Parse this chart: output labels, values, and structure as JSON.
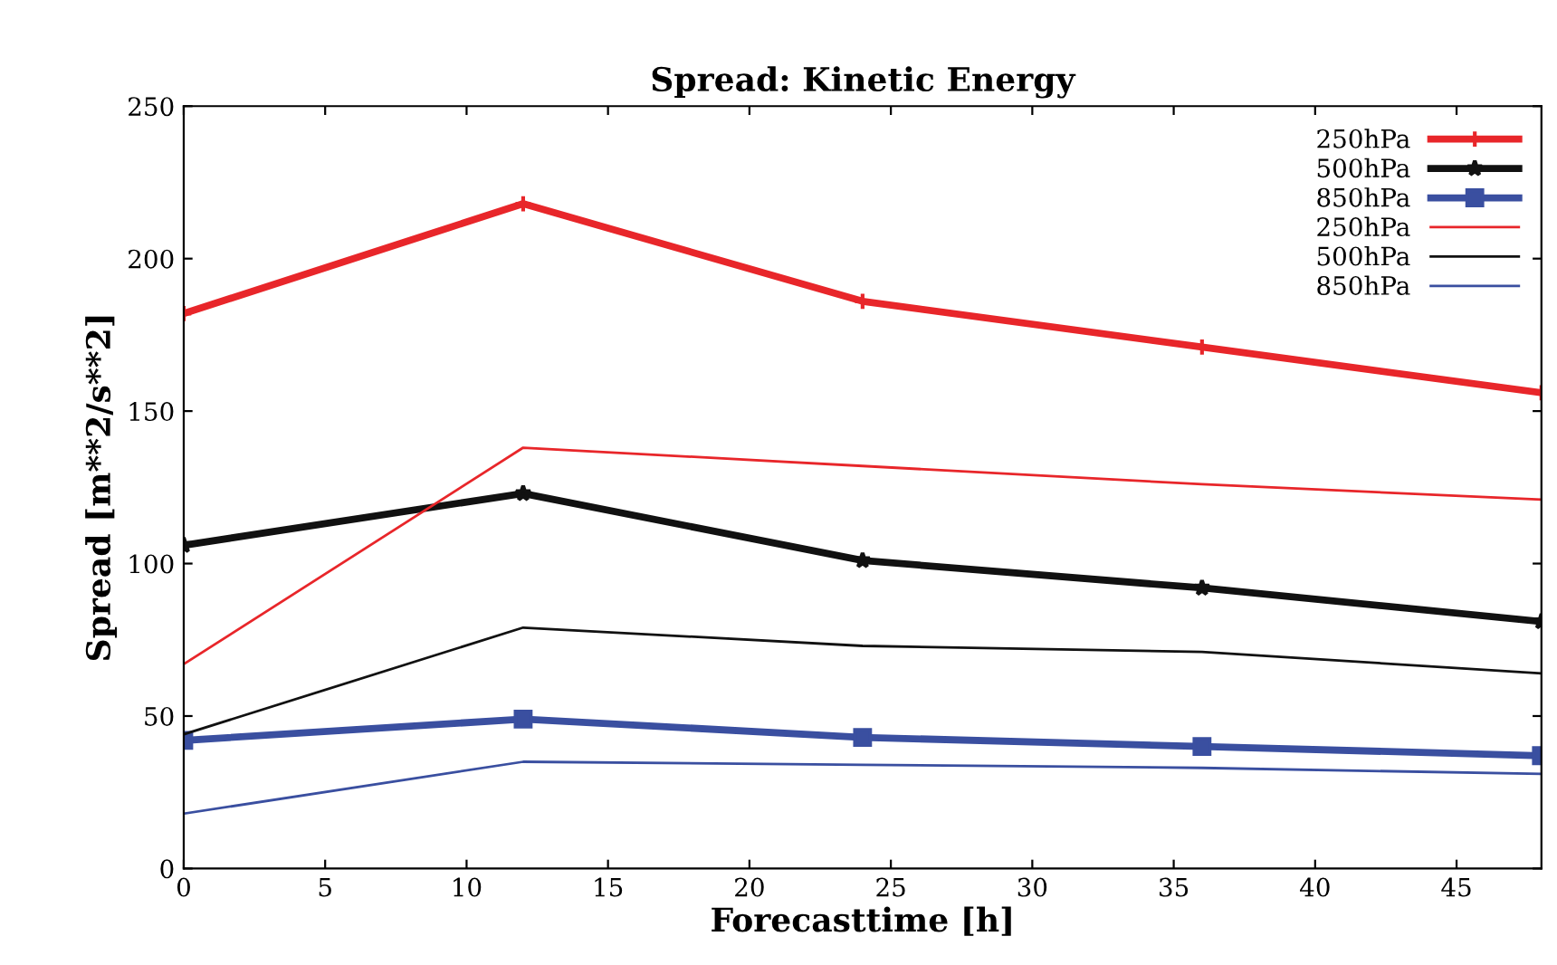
{
  "chart_data": {
    "type": "line",
    "title": "Spread: Kinetic Energy",
    "xlabel": "Forecasttime [h]",
    "ylabel": "Spread [m**2/s**2]",
    "x": [
      0,
      12,
      24,
      36,
      48
    ],
    "series": [
      {
        "name": "250hPa",
        "color": "#e8262a",
        "marker": "cross",
        "values": [
          182,
          218,
          186,
          171,
          156
        ]
      },
      {
        "name": "500hPa",
        "color": "#111111",
        "marker": "star",
        "values": [
          106,
          123,
          101,
          92,
          81
        ]
      },
      {
        "name": "850hPa",
        "color": "#3a4fa0",
        "marker": "square",
        "values": [
          42,
          49,
          43,
          40,
          37
        ]
      },
      {
        "name": "250hPa",
        "color": "#e8262a",
        "marker": "none",
        "values": [
          67,
          138,
          132,
          126,
          121
        ]
      },
      {
        "name": "500hPa",
        "color": "#111111",
        "marker": "none",
        "values": [
          44,
          79,
          73,
          71,
          64
        ]
      },
      {
        "name": "850hPa",
        "color": "#3a4fa0",
        "marker": "none",
        "values": [
          18,
          35,
          34,
          33,
          31
        ]
      }
    ],
    "xlim": [
      0,
      48
    ],
    "xticks": [
      0,
      5,
      10,
      15,
      20,
      25,
      30,
      35,
      40,
      45
    ],
    "ylim": [
      0,
      250
    ],
    "yticks": [
      0,
      50,
      100,
      150,
      200,
      250
    ],
    "grid": false,
    "legend": "top right"
  }
}
